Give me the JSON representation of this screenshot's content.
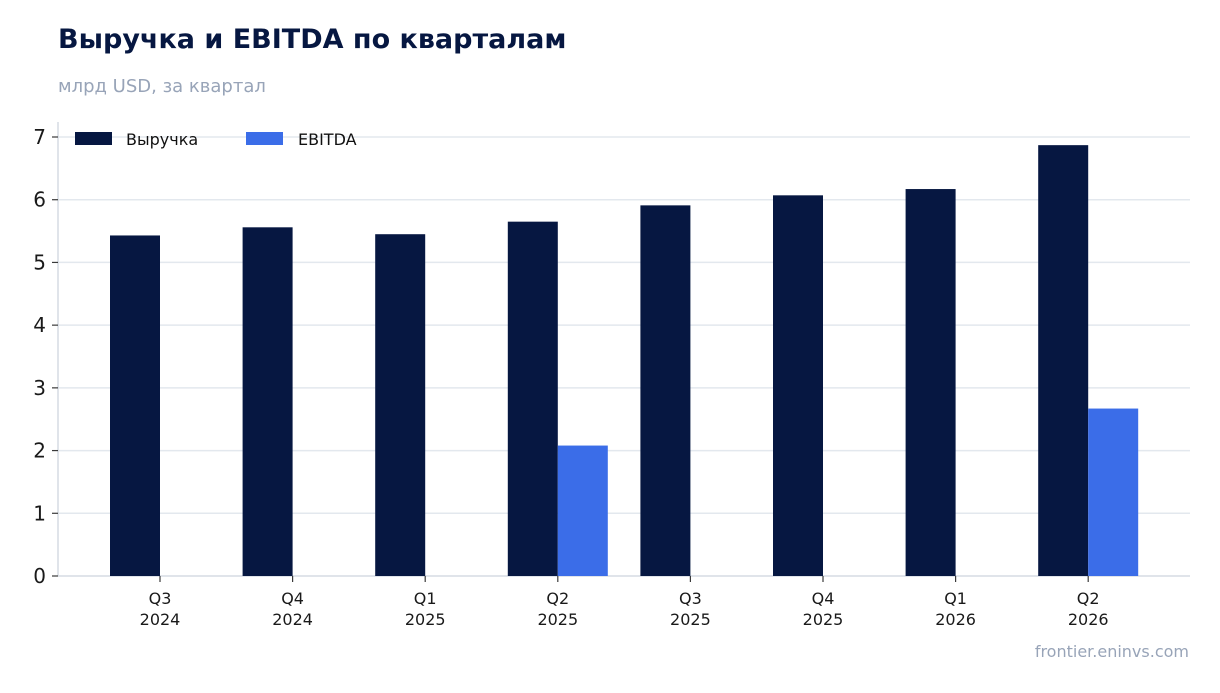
{
  "header": {
    "title": "Выручка и EBITDA по кварталам",
    "subtitle": "млрд USD, за квартал"
  },
  "footer": {
    "source": "frontier.eninvs.com"
  },
  "colors": {
    "revenue": "#061741",
    "ebitda": "#3b6de8",
    "grid": "#e3e8ee",
    "axis": "#d6dce4"
  },
  "chart_data": {
    "type": "bar",
    "title": "Выручка и EBITDA по кварталам",
    "subtitle": "млрд USD, за квартал",
    "xlabel": "",
    "ylabel": "",
    "categories": [
      [
        "Q3",
        "2024"
      ],
      [
        "Q4",
        "2024"
      ],
      [
        "Q1",
        "2025"
      ],
      [
        "Q2",
        "2025"
      ],
      [
        "Q3",
        "2025"
      ],
      [
        "Q4",
        "2025"
      ],
      [
        "Q1",
        "2026"
      ],
      [
        "Q2",
        "2026"
      ]
    ],
    "series": [
      {
        "name": "Выручка",
        "color": "#061741",
        "values": [
          5.43,
          5.56,
          5.45,
          5.65,
          5.91,
          6.07,
          6.17,
          6.87
        ]
      },
      {
        "name": "EBITDA",
        "color": "#3b6de8",
        "values": [
          null,
          null,
          null,
          2.08,
          null,
          null,
          null,
          2.67
        ]
      }
    ],
    "ylim": [
      0,
      7
    ],
    "yticks": [
      0,
      1,
      2,
      3,
      4,
      5,
      6,
      7
    ],
    "grid": true,
    "legend": "top-left"
  }
}
